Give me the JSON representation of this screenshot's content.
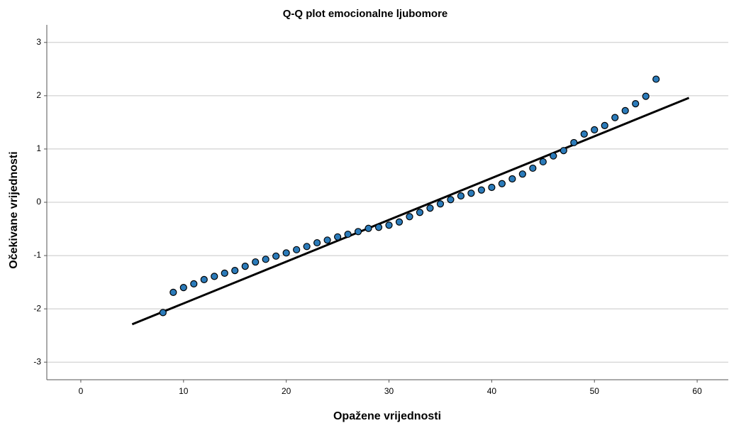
{
  "chart_data": {
    "type": "scatter",
    "title": "Q-Q plot emocionalne ljubomore",
    "xlabel": "Opažene vrijednosti",
    "ylabel": "Očekivane vrijednosti",
    "x": [
      8,
      9,
      10,
      11,
      12,
      13,
      14,
      15,
      16,
      17,
      18,
      19,
      20,
      21,
      22,
      23,
      24,
      25,
      26,
      27,
      28,
      29,
      30,
      31,
      32,
      33,
      34,
      35,
      36,
      37,
      38,
      39,
      40,
      41,
      42,
      43,
      44,
      45,
      46,
      47,
      48,
      49,
      50,
      51,
      52,
      53,
      54,
      55,
      56
    ],
    "values": [
      -2.07,
      -1.69,
      -1.6,
      -1.53,
      -1.45,
      -1.39,
      -1.33,
      -1.28,
      -1.2,
      -1.12,
      -1.07,
      -1.01,
      -0.95,
      -0.89,
      -0.83,
      -0.76,
      -0.71,
      -0.65,
      -0.6,
      -0.55,
      -0.49,
      -0.47,
      -0.43,
      -0.37,
      -0.27,
      -0.19,
      -0.11,
      -0.03,
      0.05,
      0.12,
      0.17,
      0.23,
      0.28,
      0.35,
      0.44,
      0.53,
      0.64,
      0.76,
      0.87,
      0.97,
      1.12,
      1.28,
      1.36,
      1.44,
      1.59,
      1.72,
      1.85,
      1.99,
      2.31
    ],
    "color": "#2b7bba",
    "reference_line": {
      "x": [
        5,
        59.2
      ],
      "y": [
        -2.29,
        1.96
      ],
      "color": "#000000"
    },
    "xlim": [
      -3.31,
      63.03
    ],
    "ylim": [
      -3.33,
      3.33
    ],
    "xticks": [
      0,
      10,
      20,
      30,
      40,
      50,
      60
    ],
    "yticks": [
      -3,
      -2,
      -1,
      0,
      1,
      2,
      3
    ],
    "grid": true
  }
}
